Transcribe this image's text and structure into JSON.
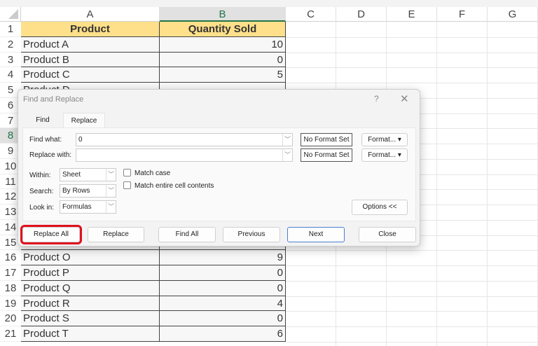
{
  "sheet": {
    "columns": [
      "A",
      "B",
      "C",
      "D",
      "E",
      "F",
      "G"
    ],
    "selected_column": "B",
    "selected_row": 8,
    "header": {
      "product": "Product",
      "quantity": "Quantity Sold"
    },
    "rows_top": [
      {
        "row": 2,
        "product": "Product A",
        "qty": "10"
      },
      {
        "row": 3,
        "product": "Product B",
        "qty": "0"
      },
      {
        "row": 4,
        "product": "Product C",
        "qty": "5"
      },
      {
        "row": 5,
        "product": "Product D",
        "qty": ""
      }
    ],
    "rows_bottom": [
      {
        "row": 16,
        "product": "Product O",
        "qty": "9"
      },
      {
        "row": 17,
        "product": "Product P",
        "qty": "0"
      },
      {
        "row": 18,
        "product": "Product Q",
        "qty": "0"
      },
      {
        "row": 19,
        "product": "Product R",
        "qty": "4"
      },
      {
        "row": 20,
        "product": "Product S",
        "qty": "0"
      },
      {
        "row": 21,
        "product": "Product T",
        "qty": "6"
      }
    ],
    "header_fill": "#ffe08a"
  },
  "dialog": {
    "title": "Find and Replace",
    "help": "?",
    "close": "✕",
    "tabs": [
      {
        "label": "Find"
      },
      {
        "label": "Replace",
        "active": true
      }
    ],
    "find_what_label": "Find what:",
    "find_what_value": "0",
    "replace_with_label": "Replace with:",
    "replace_with_value": "",
    "no_format_set": "No Format Set",
    "format_label": "Format...",
    "within_label": "Within:",
    "within_value": "Sheet",
    "search_label": "Search:",
    "search_value": "By Rows",
    "look_in_label": "Look in:",
    "look_in_value": "Formulas",
    "match_case": "Match case",
    "match_entire": "Match entire cell contents",
    "options": "Options <<",
    "buttons": {
      "replace_all": "Replace All",
      "replace": "Replace",
      "find_all": "Find All",
      "previous": "Previous",
      "next": "Next",
      "close": "Close"
    },
    "highlight_color": "#e0101e"
  }
}
